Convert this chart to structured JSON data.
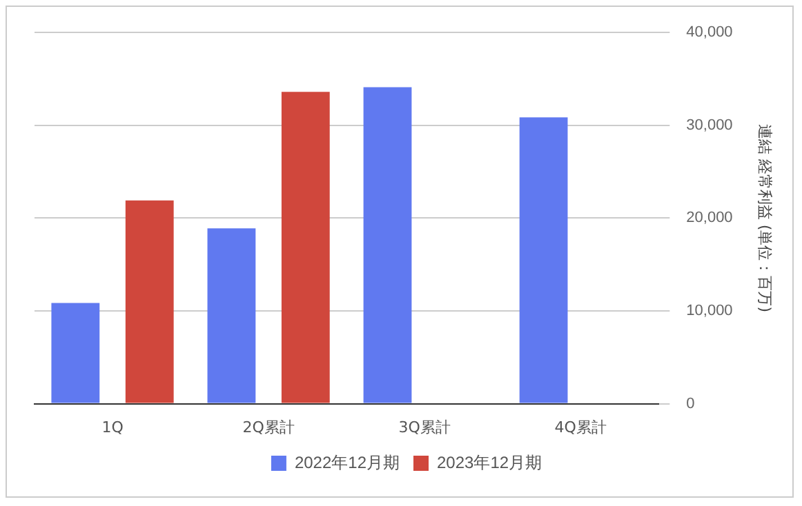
{
  "chart_data": {
    "type": "bar",
    "ylabel": "連結 経常利益 (単位：百万)",
    "categories": [
      "1Q",
      "2Q累計",
      "3Q累計",
      "4Q累計"
    ],
    "series": [
      {
        "name": "2022年12月期",
        "color": "#6079f0",
        "values": [
          10850,
          18900,
          34100,
          30850
        ]
      },
      {
        "name": "2023年12月期",
        "color": "#d0473c",
        "values": [
          21900,
          33600,
          null,
          null
        ]
      }
    ],
    "ylim": [
      0,
      40000
    ],
    "yticks": [
      {
        "value": 0,
        "label": "0"
      },
      {
        "value": 10000,
        "label": "10,000"
      },
      {
        "value": 20000,
        "label": "20,000"
      },
      {
        "value": 30000,
        "label": "30,000"
      },
      {
        "value": 40000,
        "label": "40,000"
      }
    ],
    "grid": "y",
    "legend": "bottom"
  }
}
